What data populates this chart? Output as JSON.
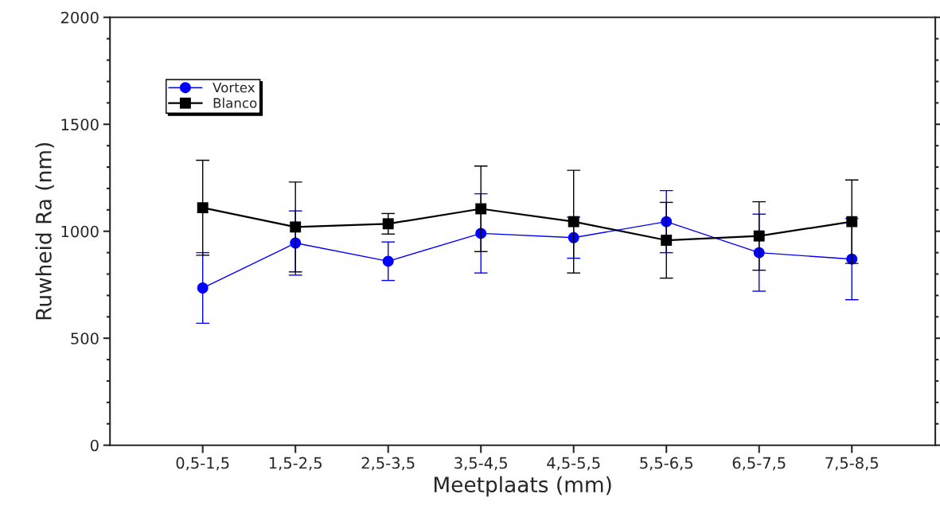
{
  "chart_data": {
    "type": "line",
    "xlabel": "Meetplaats (mm)",
    "ylabel": "Ruwheid Ra (nm)",
    "categories": [
      "0,5-1,5",
      "1,5-2,5",
      "2,5-3,5",
      "3,5-4,5",
      "4,5-5,5",
      "5,5-6,5",
      "6,5-7,5",
      "7,5-8,5"
    ],
    "series": [
      {
        "name": "Vortex",
        "color": "#0000ff",
        "marker": "circle",
        "values": [
          735,
          945,
          860,
          990,
          970,
          1045,
          900,
          870
        ],
        "errors": [
          165,
          150,
          90,
          185,
          96,
          145,
          180,
          190
        ]
      },
      {
        "name": "Blanco",
        "color": "#000000",
        "marker": "square",
        "values": [
          1110,
          1020,
          1035,
          1105,
          1045,
          958,
          978,
          1045
        ],
        "errors": [
          222,
          210,
          48,
          200,
          240,
          177,
          160,
          195
        ]
      }
    ],
    "ylim": [
      0,
      2000
    ],
    "yticks": [
      0,
      500,
      1000,
      1500,
      2000
    ],
    "legend": "top left",
    "grid": false
  }
}
